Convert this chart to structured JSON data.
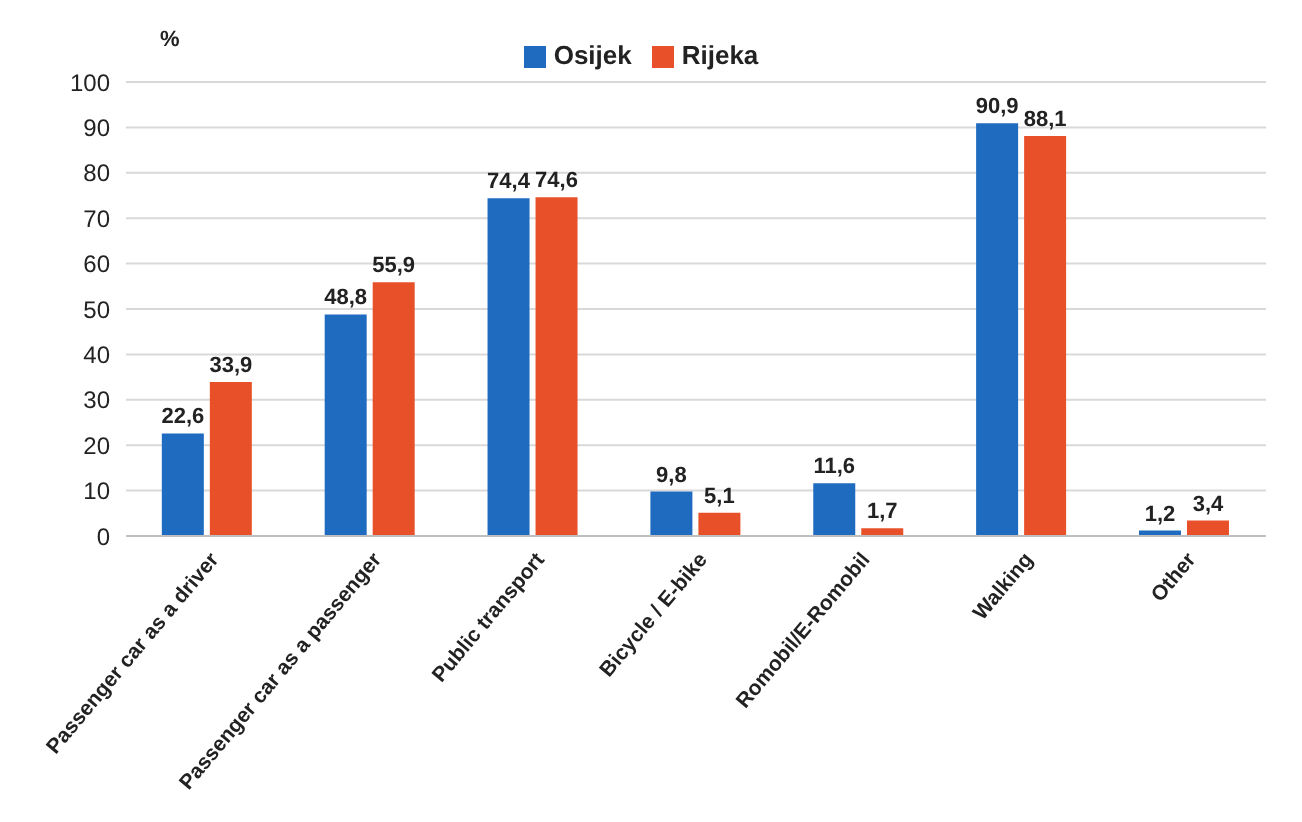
{
  "chart_data": {
    "type": "bar",
    "ylabel": "%",
    "categories": [
      "Passenger car as a driver",
      "Passenger car as a passenger",
      "Public transport",
      "Bicycle / E-bike",
      "Romobil/E-Romobil",
      "Walking",
      "Other"
    ],
    "series": [
      {
        "name": "Osijek",
        "color": "#1f6bc0",
        "values": [
          22.6,
          48.8,
          74.4,
          9.8,
          11.6,
          90.9,
          1.2
        ],
        "value_labels": [
          "22,6",
          "48,8",
          "74,4",
          "9,8",
          "11,6",
          "90,9",
          "1,2"
        ]
      },
      {
        "name": "Rijeka",
        "color": "#e8502a",
        "values": [
          33.9,
          55.9,
          74.6,
          5.1,
          1.7,
          88.1,
          3.4
        ],
        "value_labels": [
          "33,9",
          "55,9",
          "74,6",
          "5,1",
          "1,7",
          "88,1",
          "3,4"
        ]
      }
    ],
    "ylim": [
      0,
      100
    ],
    "yticks": [
      0,
      10,
      20,
      30,
      40,
      50,
      60,
      70,
      80,
      90,
      100
    ],
    "grid": "y",
    "legend": "top"
  }
}
